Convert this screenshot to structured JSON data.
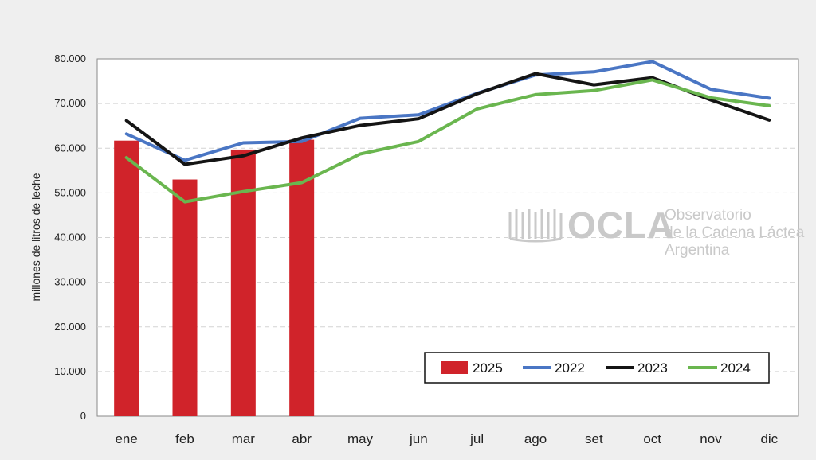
{
  "chart_data": {
    "type": "bar+line",
    "ylabel": "millones de litros de leche",
    "ylim": [
      0,
      80000
    ],
    "yticks": [
      "0",
      "10.000",
      "20.000",
      "30.000",
      "40.000",
      "50.000",
      "60.000",
      "70.000",
      "80.000"
    ],
    "ytick_values": [
      0,
      10000,
      20000,
      30000,
      40000,
      50000,
      60000,
      70000,
      80000
    ],
    "categories": [
      "ene",
      "feb",
      "mar",
      "abr",
      "may",
      "jun",
      "jul",
      "ago",
      "set",
      "oct",
      "nov",
      "dic"
    ],
    "grid": "horizontal dashed",
    "legend_position": "bottom-right",
    "bars": {
      "name": "2025",
      "color": "#d0232a",
      "values": [
        61700,
        53000,
        59700,
        61900
      ]
    },
    "series": [
      {
        "name": "2022",
        "color": "#4a76c4",
        "values": [
          63200,
          57300,
          61200,
          61500,
          66700,
          67500,
          72300,
          76400,
          77100,
          79400,
          73200,
          71200
        ]
      },
      {
        "name": "2023",
        "color": "#141414",
        "values": [
          66200,
          56400,
          58300,
          62300,
          65100,
          66600,
          72200,
          76700,
          74200,
          75800,
          70800,
          66300
        ]
      },
      {
        "name": "2024",
        "color": "#6ab64f",
        "values": [
          57900,
          48000,
          50300,
          52300,
          58700,
          61500,
          68800,
          72000,
          72900,
          75300,
          71300,
          69500
        ]
      }
    ]
  },
  "watermark": {
    "brand": "OCLA",
    "line1": "Observatorio",
    "line2": "de la Cadena Láctea",
    "line3": "Argentina"
  }
}
